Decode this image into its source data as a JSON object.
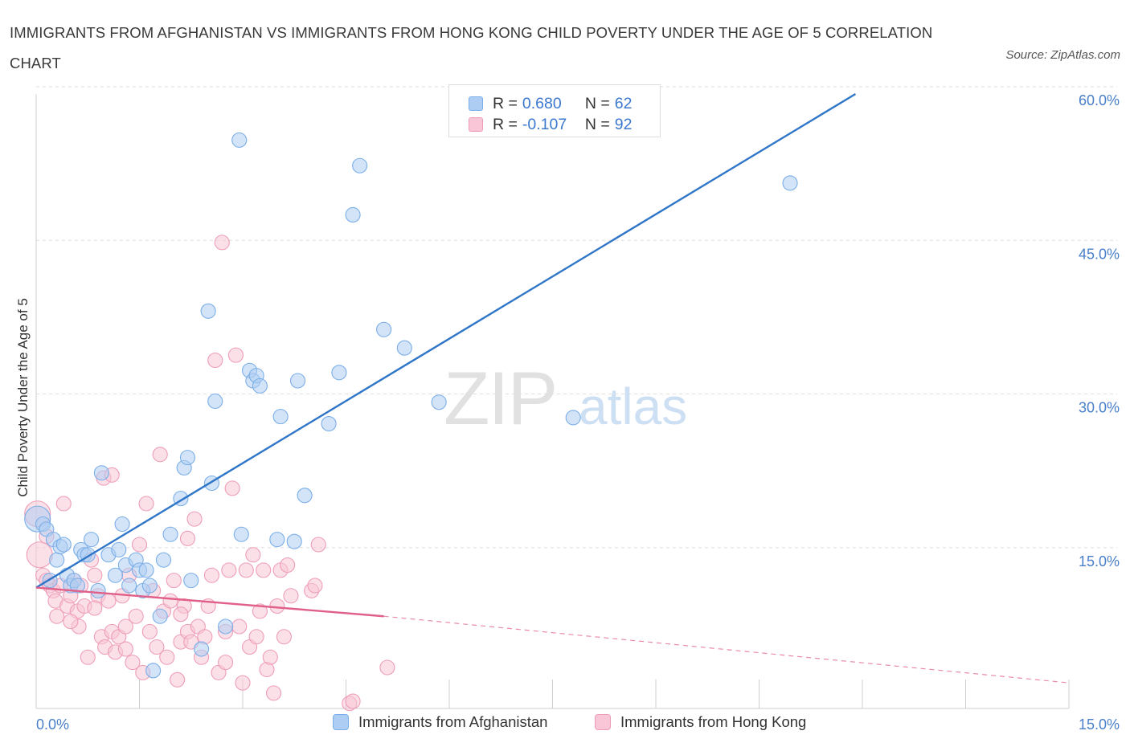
{
  "title": "IMMIGRANTS FROM AFGHANISTAN VS IMMIGRANTS FROM HONG KONG CHILD POVERTY UNDER THE AGE OF 5 CORRELATION CHART",
  "source": "Source: ZipAtlas.com",
  "watermark": {
    "zip": "ZIP",
    "atlas": "atlas"
  },
  "legend": {
    "rows": [
      {
        "r_label": "R = ",
        "r_value": "0.680",
        "n_label": "N = ",
        "n_value": "62"
      },
      {
        "r_label": "R = ",
        "r_value": "-0.107",
        "n_label": "N = ",
        "n_value": "92"
      }
    ]
  },
  "chart_data": {
    "type": "scatter",
    "title": "IMMIGRANTS FROM AFGHANISTAN VS IMMIGRANTS FROM HONG KONG CHILD POVERTY UNDER THE AGE OF 5 CORRELATION CHART",
    "ylabel": "Child Poverty Under the Age of 5",
    "xlabel": "",
    "xlim": [
      0,
      15
    ],
    "ylim": [
      0,
      60
    ],
    "x_tick_labels": [
      "0.0%",
      "15.0%"
    ],
    "y_ticks": [
      15,
      30,
      45,
      60
    ],
    "y_tick_labels": [
      "15.0%",
      "30.0%",
      "45.0%",
      "60.0%"
    ],
    "grid": true,
    "legend_position": "top-center",
    "series": [
      {
        "name": "Immigrants from Afghanistan",
        "color": "#7aaee8",
        "fill": "#aecdf3",
        "R": 0.68,
        "N": 62,
        "trend": {
          "x": [
            0,
            11.9
          ],
          "y": [
            11.8,
            60
          ]
        },
        "points": [
          [
            0.02,
            18.5
          ],
          [
            0.1,
            18.0
          ],
          [
            0.15,
            17.5
          ],
          [
            0.2,
            12.5
          ],
          [
            0.25,
            16.5
          ],
          [
            0.3,
            14.5
          ],
          [
            0.35,
            15.8
          ],
          [
            0.4,
            16.0
          ],
          [
            0.45,
            13.0
          ],
          [
            0.5,
            12.0
          ],
          [
            0.55,
            12.5
          ],
          [
            0.6,
            12.0
          ],
          [
            0.65,
            15.5
          ],
          [
            0.7,
            15.0
          ],
          [
            0.75,
            15.0
          ],
          [
            0.8,
            16.5
          ],
          [
            0.9,
            11.5
          ],
          [
            0.95,
            23.0
          ],
          [
            1.05,
            15.0
          ],
          [
            1.15,
            13.0
          ],
          [
            1.2,
            15.5
          ],
          [
            1.25,
            18.0
          ],
          [
            1.3,
            14.0
          ],
          [
            1.35,
            12.0
          ],
          [
            1.45,
            14.5
          ],
          [
            1.5,
            13.5
          ],
          [
            1.55,
            11.5
          ],
          [
            1.6,
            13.5
          ],
          [
            1.65,
            12.0
          ],
          [
            1.7,
            3.7
          ],
          [
            1.8,
            9.0
          ],
          [
            1.85,
            14.5
          ],
          [
            1.95,
            17.0
          ],
          [
            2.1,
            20.5
          ],
          [
            2.15,
            23.5
          ],
          [
            2.2,
            24.5
          ],
          [
            2.25,
            12.5
          ],
          [
            2.4,
            5.8
          ],
          [
            2.5,
            38.8
          ],
          [
            2.55,
            22.0
          ],
          [
            2.6,
            30.0
          ],
          [
            2.75,
            8.0
          ],
          [
            2.95,
            55.5
          ],
          [
            2.98,
            17.0
          ],
          [
            3.1,
            33.0
          ],
          [
            3.15,
            32.0
          ],
          [
            3.2,
            32.5
          ],
          [
            3.25,
            31.5
          ],
          [
            3.5,
            16.5
          ],
          [
            3.55,
            28.5
          ],
          [
            3.75,
            16.3
          ],
          [
            3.8,
            32.0
          ],
          [
            3.9,
            20.8
          ],
          [
            4.25,
            27.8
          ],
          [
            4.4,
            32.8
          ],
          [
            4.6,
            48.2
          ],
          [
            4.7,
            53.0
          ],
          [
            5.05,
            37.0
          ],
          [
            5.35,
            35.2
          ],
          [
            5.85,
            29.9
          ],
          [
            7.8,
            28.4
          ],
          [
            10.95,
            51.3
          ]
        ]
      },
      {
        "name": "Immigrants from Hong Kong",
        "color": "#ee9db8",
        "fill": "#f8c6d6",
        "R": -0.107,
        "N": 92,
        "trend": {
          "x": [
            0,
            5.05
          ],
          "y": [
            11.8,
            9.0
          ]
        },
        "trend_dashed": {
          "x": [
            5.05,
            15
          ],
          "y": [
            9.0,
            2.5
          ]
        },
        "points": [
          [
            0.02,
            19.0
          ],
          [
            0.05,
            15.0
          ],
          [
            0.1,
            13.0
          ],
          [
            0.15,
            12.5
          ],
          [
            0.2,
            12.0
          ],
          [
            0.25,
            11.5
          ],
          [
            0.28,
            10.5
          ],
          [
            0.3,
            9.0
          ],
          [
            0.35,
            12.0
          ],
          [
            0.4,
            20.0
          ],
          [
            0.45,
            10.0
          ],
          [
            0.5,
            11.0
          ],
          [
            0.55,
            12.5
          ],
          [
            0.6,
            9.5
          ],
          [
            0.62,
            8.0
          ],
          [
            0.65,
            12.0
          ],
          [
            0.7,
            10.0
          ],
          [
            0.75,
            5.0
          ],
          [
            0.8,
            14.5
          ],
          [
            0.85,
            13.0
          ],
          [
            0.9,
            11.0
          ],
          [
            0.95,
            7.0
          ],
          [
            0.98,
            22.5
          ],
          [
            1.0,
            6.0
          ],
          [
            1.05,
            10.5
          ],
          [
            1.1,
            7.5
          ],
          [
            1.15,
            5.5
          ],
          [
            1.2,
            7.0
          ],
          [
            1.25,
            11.0
          ],
          [
            1.3,
            8.0
          ],
          [
            1.35,
            13.0
          ],
          [
            1.4,
            4.5
          ],
          [
            1.45,
            9.0
          ],
          [
            1.5,
            16.0
          ],
          [
            1.55,
            3.5
          ],
          [
            1.6,
            20.0
          ],
          [
            1.65,
            7.5
          ],
          [
            1.7,
            11.5
          ],
          [
            1.75,
            6.0
          ],
          [
            1.8,
            24.8
          ],
          [
            1.85,
            9.5
          ],
          [
            1.9,
            5.0
          ],
          [
            1.95,
            10.5
          ],
          [
            2.0,
            12.5
          ],
          [
            2.05,
            2.8
          ],
          [
            2.1,
            6.5
          ],
          [
            2.15,
            10.0
          ],
          [
            2.2,
            7.5
          ],
          [
            2.25,
            6.5
          ],
          [
            2.3,
            18.5
          ],
          [
            2.35,
            8.0
          ],
          [
            2.4,
            5.0
          ],
          [
            2.45,
            7.0
          ],
          [
            2.5,
            10.0
          ],
          [
            2.55,
            13.0
          ],
          [
            2.6,
            34.0
          ],
          [
            2.65,
            3.5
          ],
          [
            2.7,
            45.5
          ],
          [
            2.75,
            7.5
          ],
          [
            2.8,
            13.5
          ],
          [
            2.85,
            21.5
          ],
          [
            2.9,
            34.5
          ],
          [
            2.95,
            8.0
          ],
          [
            3.0,
            2.5
          ],
          [
            3.05,
            13.5
          ],
          [
            3.1,
            6.0
          ],
          [
            3.15,
            15.0
          ],
          [
            3.2,
            7.0
          ],
          [
            3.25,
            9.5
          ],
          [
            3.3,
            13.5
          ],
          [
            3.35,
            3.8
          ],
          [
            3.4,
            5.0
          ],
          [
            3.5,
            10.0
          ],
          [
            3.55,
            13.5
          ],
          [
            3.6,
            7.0
          ],
          [
            3.65,
            14.0
          ],
          [
            3.7,
            11.0
          ],
          [
            4.0,
            11.5
          ],
          [
            4.05,
            12.0
          ],
          [
            4.1,
            16.0
          ],
          [
            4.55,
            0.5
          ],
          [
            4.6,
            0.7
          ],
          [
            5.1,
            4.0
          ],
          [
            1.1,
            22.8
          ],
          [
            2.1,
            9.2
          ],
          [
            2.2,
            16.6
          ],
          [
            0.15,
            16.8
          ],
          [
            0.5,
            8.5
          ],
          [
            3.45,
            1.5
          ],
          [
            1.3,
            5.8
          ],
          [
            0.85,
            9.8
          ],
          [
            2.75,
            4.5
          ]
        ]
      }
    ]
  }
}
